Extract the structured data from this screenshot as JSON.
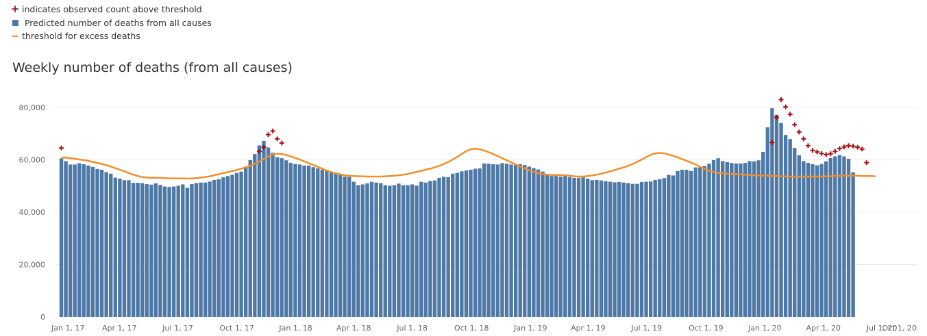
{
  "legend": {
    "items": [
      {
        "symbol": "plus",
        "label": "indicates observed count above threshold"
      },
      {
        "symbol": "square",
        "label": " Predicted number of deaths from all causes"
      },
      {
        "symbol": "line",
        "label": "threshold for excess deaths"
      }
    ]
  },
  "colors": {
    "bar": "#4e79a7",
    "threshold": "#f28e2b",
    "marker": "#a50f15",
    "grid": "#ececec",
    "text": "#666666"
  },
  "chart_data": {
    "type": "bar",
    "title": "Weekly number of deaths (from all causes)",
    "xlabel": "",
    "ylabel": "",
    "ylim": [
      0,
      80000
    ],
    "y_ticks": [
      0,
      20000,
      40000,
      60000,
      80000
    ],
    "y_tick_labels": [
      "0",
      "20,000",
      "40,000",
      "60,000",
      "80,000"
    ],
    "x_tick_labels": [
      "Jan 1, 17",
      "Apr 1, 17",
      "Jul 1, 17",
      "Oct 1, 17",
      "Jan 1, 18",
      "Apr 1, 18",
      "Jul 1, 18",
      "Oct 1, 18",
      "Jan 1, 19",
      "Apr 1, 19",
      "Jul 1, 19",
      "Oct 1, 19",
      "Jan 1, 20",
      "Apr 1, 20",
      "Jul 1, 20",
      "Oct 1, 20"
    ],
    "x_tick_weeks": [
      0,
      12.9,
      25.9,
      39,
      52.1,
      65,
      78,
      91.2,
      104.3,
      117.1,
      130.1,
      143.3,
      156.4,
      169.4,
      182.4,
      195.6
    ],
    "grid": "horizontal",
    "legend_position": "top-left",
    "series": [
      {
        "name": " Predicted number of deaths from all causes",
        "type": "bar",
        "values": [
          60500,
          59500,
          58200,
          58200,
          58700,
          58300,
          57800,
          57300,
          56500,
          56200,
          55300,
          54700,
          53200,
          52800,
          52200,
          52200,
          51200,
          51200,
          51100,
          50700,
          50500,
          51000,
          50400,
          49800,
          49600,
          49800,
          50100,
          50600,
          49300,
          50700,
          51100,
          51300,
          51300,
          51700,
          52300,
          52600,
          53300,
          53800,
          54300,
          55000,
          55500,
          57400,
          59900,
          62200,
          65500,
          67200,
          64700,
          62700,
          61000,
          60600,
          59800,
          58800,
          58400,
          58200,
          57800,
          57800,
          57200,
          56700,
          56200,
          55700,
          55100,
          54700,
          54200,
          53600,
          53500,
          51600,
          50300,
          50600,
          51000,
          51600,
          51300,
          51100,
          50300,
          50100,
          50300,
          50900,
          50300,
          50300,
          50600,
          50100,
          51600,
          51300,
          51900,
          52100,
          53100,
          53500,
          53400,
          54700,
          55000,
          55600,
          55900,
          56200,
          56600,
          56700,
          58600,
          58500,
          58300,
          58200,
          58700,
          58500,
          58200,
          58100,
          58300,
          58000,
          57400,
          56800,
          56300,
          55500,
          54500,
          53800,
          53800,
          53600,
          53800,
          53400,
          53100,
          53100,
          53300,
          52800,
          52200,
          52300,
          52100,
          51800,
          51600,
          51400,
          51500,
          51300,
          51100,
          50800,
          50800,
          51500,
          51600,
          51700,
          52300,
          52600,
          53000,
          54200,
          54000,
          55700,
          56200,
          56200,
          55700,
          57100,
          57100,
          57600,
          58500,
          59900,
          60600,
          59500,
          59100,
          58800,
          58600,
          58600,
          58800,
          59500,
          59400,
          59800,
          63000,
          72400,
          79700,
          77200,
          74000,
          69500,
          67900,
          64500,
          61700,
          59500,
          58800,
          58300,
          57900,
          58400,
          59400,
          60700,
          61300,
          61800,
          61300,
          60400,
          55200
        ]
      },
      {
        "name": "threshold for excess deaths",
        "type": "line",
        "values": [
          60800,
          60800,
          60600,
          60400,
          60100,
          59900,
          59600,
          59200,
          58800,
          58400,
          58000,
          57400,
          56800,
          56200,
          55600,
          54900,
          54300,
          53800,
          53400,
          53200,
          53100,
          53100,
          53100,
          53000,
          52900,
          52900,
          52900,
          52900,
          52800,
          52900,
          53000,
          53200,
          53400,
          53700,
          54100,
          54500,
          54900,
          55300,
          55700,
          56100,
          56600,
          57100,
          57700,
          58400,
          59300,
          60300,
          61300,
          62100,
          62300,
          62200,
          61800,
          61300,
          60700,
          60100,
          59400,
          58700,
          58000,
          57300,
          56600,
          55900,
          55300,
          54800,
          54400,
          54100,
          53900,
          53800,
          53700,
          53700,
          53600,
          53600,
          53600,
          53600,
          53700,
          53800,
          53900,
          54100,
          54300,
          54600,
          55000,
          55400,
          55800,
          56200,
          56600,
          57100,
          57700,
          58400,
          59200,
          60100,
          61100,
          62200,
          63300,
          64000,
          64300,
          64000,
          63500,
          62900,
          62200,
          61400,
          60600,
          59800,
          59000,
          58200,
          57400,
          56700,
          56000,
          55400,
          54900,
          54500,
          54300,
          54200,
          54200,
          54200,
          54100,
          53900,
          53700,
          53600,
          53600,
          53800,
          54000,
          54300,
          54700,
          55100,
          55600,
          56100,
          56600,
          57100,
          57700,
          58400,
          59200,
          60100,
          61000,
          61900,
          62400,
          62600,
          62500,
          62000,
          61500,
          60900,
          60300,
          59600,
          58900,
          58200,
          57300,
          56500,
          55800,
          55300,
          55000,
          54800,
          54700,
          54600,
          54500,
          54400,
          54300,
          54200,
          54100,
          54000,
          53900,
          53900,
          53800,
          53800,
          53700,
          53700,
          53600,
          53600,
          53600,
          53600,
          53600,
          53600,
          53600,
          53600,
          53700,
          53700,
          53800,
          53800,
          53900,
          53900,
          53900,
          53900,
          53800,
          53800,
          53800,
          53700
        ]
      },
      {
        "name": "indicates observed count above threshold",
        "type": "scatter",
        "points": [
          [
            0,
            64500
          ],
          [
            44,
            63200
          ],
          [
            45,
            64800
          ],
          [
            46,
            69600
          ],
          [
            47,
            71000
          ],
          [
            48,
            68000
          ],
          [
            49,
            66400
          ],
          [
            158,
            66600
          ],
          [
            159,
            76200
          ],
          [
            160,
            83000
          ],
          [
            161,
            80200
          ],
          [
            162,
            77400
          ],
          [
            163,
            73400
          ],
          [
            164,
            70600
          ],
          [
            165,
            68000
          ],
          [
            166,
            65400
          ],
          [
            167,
            63600
          ],
          [
            168,
            63000
          ],
          [
            169,
            62400
          ],
          [
            170,
            62000
          ],
          [
            171,
            62300
          ],
          [
            172,
            63200
          ],
          [
            173,
            64300
          ],
          [
            174,
            64900
          ],
          [
            175,
            65400
          ],
          [
            176,
            65200
          ],
          [
            177,
            64800
          ],
          [
            178,
            64100
          ],
          [
            179,
            58900
          ]
        ]
      }
    ]
  }
}
